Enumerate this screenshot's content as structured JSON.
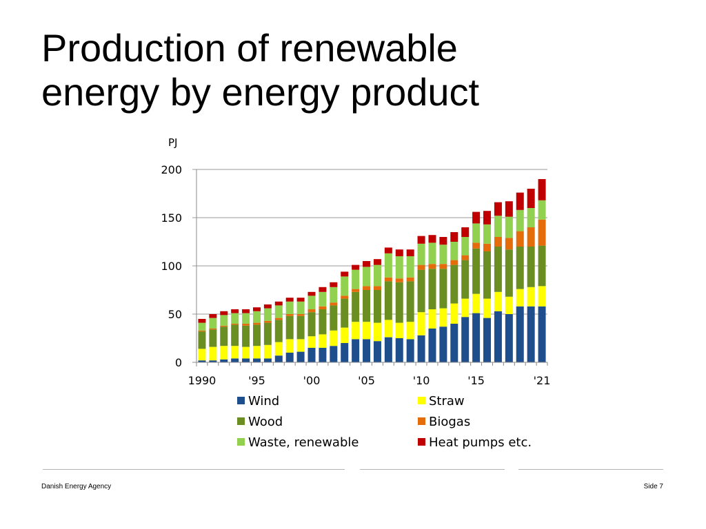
{
  "slide": {
    "title_line1": "Production of renewable",
    "title_line2": "energy by energy product",
    "footer_left": "Danish Energy Agency",
    "footer_right": "Side 7"
  },
  "chart_data": {
    "type": "bar",
    "stacked": true,
    "title": "Production of renewable energy by energy product",
    "ylabel": "PJ",
    "xlabel": "",
    "ylim": [
      0,
      200
    ],
    "yticks": [
      0,
      50,
      100,
      150,
      200
    ],
    "categories": [
      "1990",
      "1991",
      "1992",
      "1993",
      "1994",
      "1995",
      "1996",
      "1997",
      "1998",
      "1999",
      "2000",
      "2001",
      "2002",
      "2003",
      "2004",
      "2005",
      "2006",
      "2007",
      "2008",
      "2009",
      "2010",
      "2011",
      "2012",
      "2013",
      "2014",
      "2015",
      "2016",
      "2017",
      "2018",
      "2019",
      "2020",
      "2021"
    ],
    "xtick_labels": [
      {
        "index": 0,
        "label": "1990"
      },
      {
        "index": 5,
        "label": "'95"
      },
      {
        "index": 10,
        "label": "'00"
      },
      {
        "index": 15,
        "label": "'05"
      },
      {
        "index": 20,
        "label": "'10"
      },
      {
        "index": 25,
        "label": "'15"
      },
      {
        "index": 31,
        "label": "'21"
      }
    ],
    "legend_position": "bottom",
    "series": [
      {
        "name": "Wind",
        "color": "#1f4e8c",
        "values": [
          2,
          2,
          3,
          4,
          4,
          4,
          4,
          7,
          10,
          11,
          15,
          15,
          17,
          20,
          24,
          24,
          22,
          26,
          25,
          24,
          28,
          35,
          37,
          40,
          47,
          51,
          46,
          53,
          50,
          58,
          58,
          58
        ]
      },
      {
        "name": "Straw",
        "color": "#ffff00",
        "values": [
          12,
          14,
          14,
          13,
          12,
          13,
          14,
          14,
          14,
          13,
          12,
          14,
          16,
          16,
          18,
          18,
          19,
          18,
          16,
          18,
          24,
          20,
          19,
          21,
          19,
          20,
          20,
          20,
          18,
          18,
          20,
          21
        ]
      },
      {
        "name": "Wood",
        "color": "#6b8e23",
        "values": [
          18,
          18,
          20,
          22,
          22,
          22,
          23,
          23,
          24,
          24,
          25,
          26,
          26,
          30,
          31,
          33,
          34,
          40,
          42,
          42,
          44,
          42,
          41,
          40,
          40,
          47,
          49,
          47,
          49,
          44,
          42,
          42
        ]
      },
      {
        "name": "Biogas",
        "color": "#e46c0a",
        "values": [
          1,
          1,
          1,
          1,
          2,
          2,
          2,
          2,
          2,
          2,
          3,
          3,
          3,
          3,
          3,
          4,
          4,
          4,
          4,
          4,
          5,
          5,
          5,
          5,
          5,
          6,
          8,
          10,
          12,
          16,
          20,
          27
        ]
      },
      {
        "name": "Waste, renewable",
        "color": "#92d050",
        "values": [
          8,
          11,
          11,
          11,
          11,
          12,
          13,
          13,
          13,
          13,
          14,
          15,
          16,
          20,
          20,
          20,
          22,
          25,
          23,
          22,
          22,
          22,
          20,
          19,
          19,
          20,
          20,
          22,
          22,
          22,
          20,
          20
        ]
      },
      {
        "name": "Heat pumps etc.",
        "color": "#c00000",
        "values": [
          4,
          4,
          4,
          4,
          4,
          4,
          4,
          4,
          4,
          4,
          4,
          5,
          5,
          5,
          5,
          6,
          6,
          6,
          7,
          7,
          8,
          8,
          8,
          10,
          10,
          12,
          14,
          14,
          16,
          18,
          20,
          22
        ]
      }
    ]
  }
}
